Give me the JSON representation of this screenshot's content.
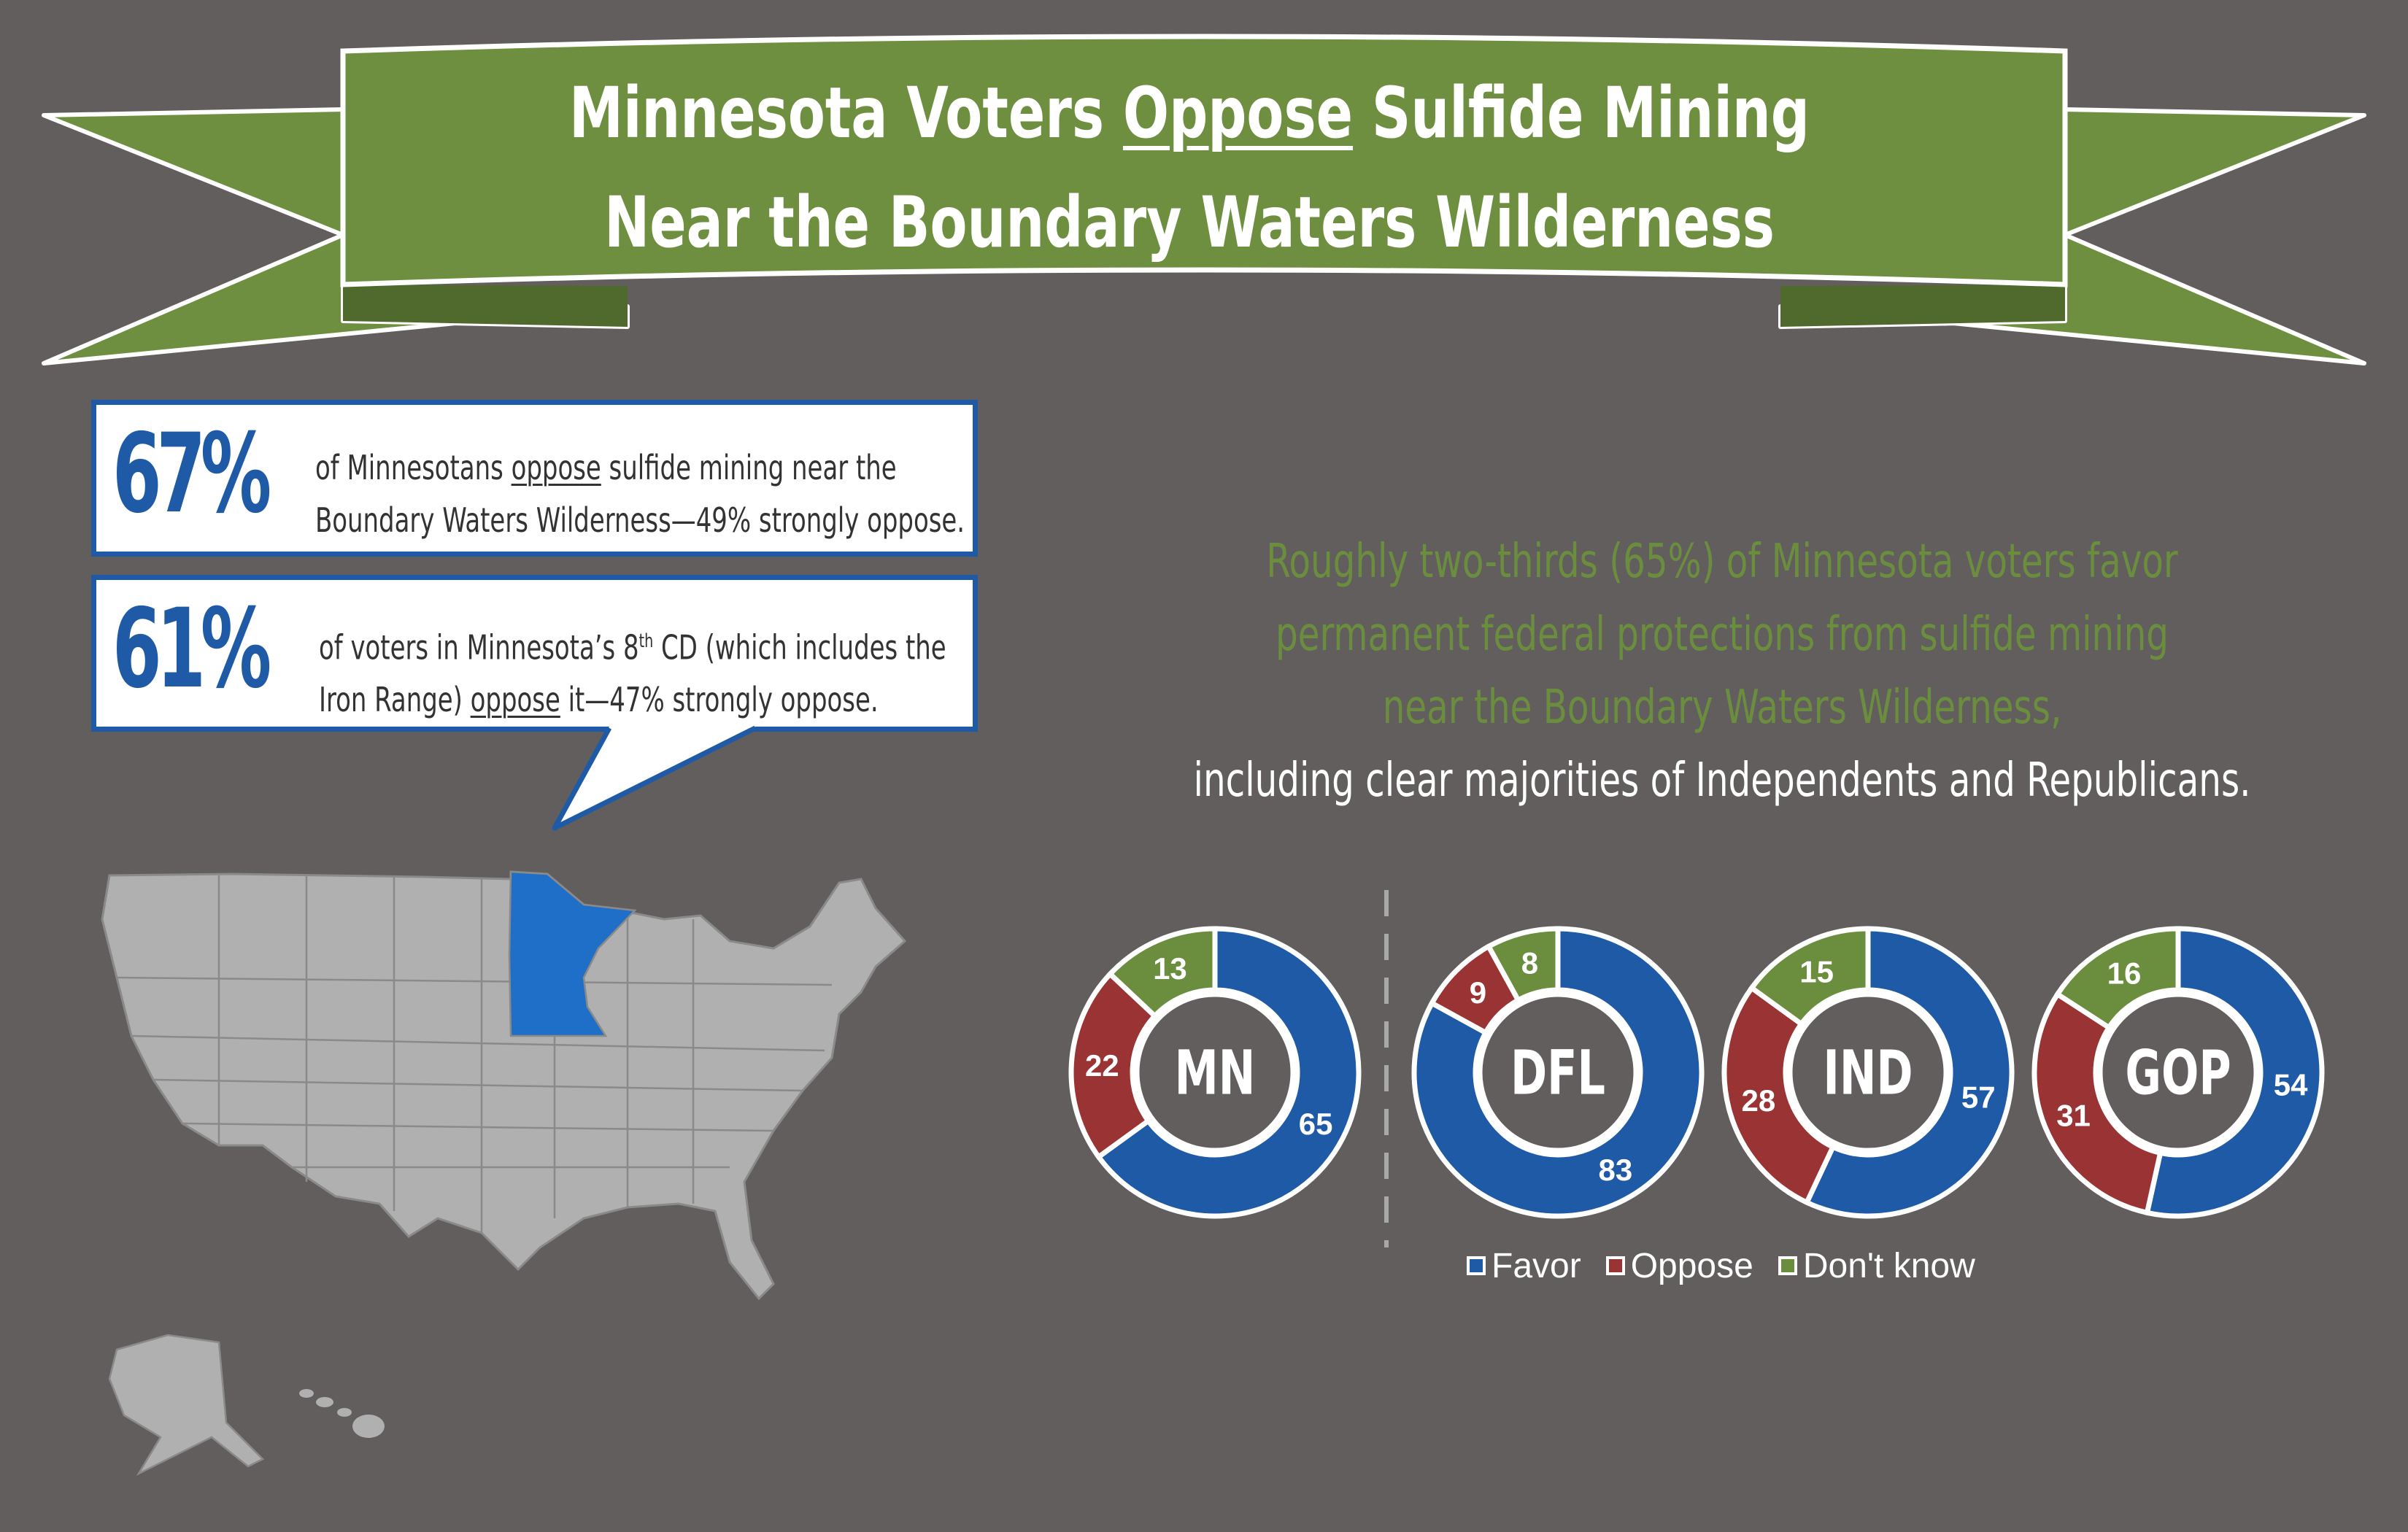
{
  "banner": {
    "line1_pre": "Minnesota Voters ",
    "line1_under": "Oppose",
    "line1_post": " Sulfide Mining",
    "line2": "Near the Boundary Waters Wilderness"
  },
  "stats": [
    {
      "value": "67%",
      "line1_pre": "of Minnesotans ",
      "line1_under": "oppose",
      "line1_post": " sulfide mining near the",
      "line2": "Boundary Waters Wilderness—49% strongly oppose."
    },
    {
      "value": "61%",
      "line1_pre": "of voters in Minnesota’s 8",
      "line1_sup": "th",
      "line1_post": " CD  (which includes the",
      "line2_pre": "Iron Range) ",
      "line2_under": "oppose",
      "line2_post": " it—47% strongly oppose."
    }
  ],
  "summary": {
    "green_lines": [
      "Roughly two-thirds (65%) of Minnesota voters favor",
      "permanent federal protections from sulfide mining",
      "near the Boundary Waters Wilderness,"
    ],
    "white_line": "including clear majorities of Independents and Republicans."
  },
  "colors": {
    "background": "#625e5e",
    "banner_green": "#6e8f40",
    "banner_dark": "#4f6a2c",
    "favor": "#1f5aa6",
    "oppose": "#9a3434",
    "dont_know": "#6b8e3e",
    "minnesota": "#1f6fc8",
    "map_gray": "#b0b0b0"
  },
  "chart_data": {
    "type": "pie",
    "variant": "donut",
    "legend": [
      "Favor",
      "Oppose",
      "Don't know"
    ],
    "legend_position": "bottom",
    "series": [
      {
        "name": "MN",
        "values": {
          "Favor": 65,
          "Oppose": 22,
          "Don't know": 13
        }
      },
      {
        "name": "DFL",
        "values": {
          "Favor": 83,
          "Oppose": 9,
          "Don't know": 8
        }
      },
      {
        "name": "IND",
        "values": {
          "Favor": 57,
          "Oppose": 28,
          "Don't know": 15
        }
      },
      {
        "name": "GOP",
        "values": {
          "Favor": 54,
          "Oppose": 31,
          "Don't know": 16
        }
      }
    ]
  }
}
